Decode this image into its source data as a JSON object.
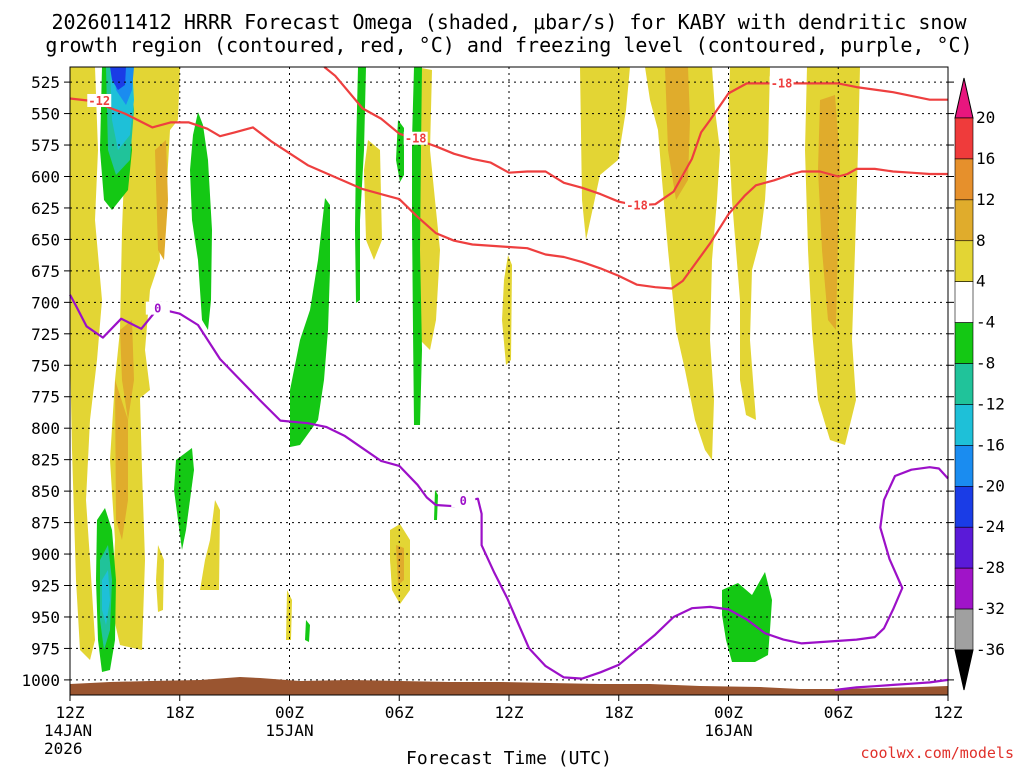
{
  "chart_data": {
    "type": "time-height cross section",
    "title_line1": "2026011412 HRRR Forecast Omega (shaded, μbar/s) for KABY with dendritic snow",
    "title_line2": "growth region (contoured, red, °C) and freezing level (contoured, purple, °C)",
    "xlabel": "Forecast Time (UTC)",
    "credit": "coolwx.com/models",
    "x_ticks": [
      {
        "hour": 0,
        "label": "12Z",
        "date": "14JAN",
        "year": "2026"
      },
      {
        "hour": 6,
        "label": "18Z"
      },
      {
        "hour": 12,
        "label": "00Z",
        "date": "15JAN"
      },
      {
        "hour": 18,
        "label": "06Z"
      },
      {
        "hour": 24,
        "label": "12Z"
      },
      {
        "hour": 30,
        "label": "18Z"
      },
      {
        "hour": 36,
        "label": "00Z",
        "date": "16JAN"
      },
      {
        "hour": 42,
        "label": "06Z"
      },
      {
        "hour": 48,
        "label": "12Z"
      }
    ],
    "x_range_hours": [
      0,
      48
    ],
    "y_pressure_levels_mb": [
      525,
      550,
      575,
      600,
      625,
      650,
      675,
      700,
      725,
      750,
      775,
      800,
      825,
      850,
      875,
      900,
      925,
      950,
      975,
      1000
    ],
    "y_range_mb": [
      513,
      1012
    ],
    "colorbar": {
      "labels": [
        "20",
        "16",
        "12",
        "8",
        "4",
        "-4",
        "-8",
        "-12",
        "-16",
        "-20",
        "-24",
        "-28",
        "-32",
        "-36"
      ],
      "bands": [
        {
          "range": [
            16,
            20
          ],
          "color": "#ef3b3b"
        },
        {
          "range": [
            12,
            16
          ],
          "color": "#e6902c"
        },
        {
          "range": [
            8,
            12
          ],
          "color": "#e0ac2c"
        },
        {
          "range": [
            4,
            8
          ],
          "color": "#e3d534"
        },
        {
          "range": [
            -4,
            4
          ],
          "color": "#ffffff"
        },
        {
          "range": [
            -8,
            -4
          ],
          "color": "#14c814"
        },
        {
          "range": [
            -12,
            -8
          ],
          "color": "#20c39a"
        },
        {
          "range": [
            -16,
            -12
          ],
          "color": "#1ec0d8"
        },
        {
          "range": [
            -20,
            -16
          ],
          "color": "#1a8cf0"
        },
        {
          "range": [
            -24,
            -20
          ],
          "color": "#1a3ce6"
        },
        {
          "range": [
            -28,
            -24
          ],
          "color": "#5a1ad8"
        },
        {
          "range": [
            -32,
            -28
          ],
          "color": "#a014c8"
        },
        {
          "range": [
            -36,
            -32
          ],
          "color": "#a0a0a0"
        }
      ],
      "top_arrow_color": "#e8167e",
      "bottom_arrow_color": "#000000"
    },
    "series": [
      {
        "name": "-12C contour",
        "color": "#ee3f3f",
        "label": "-12",
        "points": [
          [
            0,
            538
          ],
          [
            1.2,
            540
          ],
          [
            3,
            550
          ],
          [
            4.5,
            561
          ],
          [
            5.5,
            557
          ],
          [
            6.5,
            557
          ],
          [
            7.5,
            562
          ],
          [
            8.2,
            568
          ],
          [
            9,
            565
          ],
          [
            10,
            561
          ],
          [
            11,
            572
          ],
          [
            13,
            591
          ],
          [
            16,
            610
          ],
          [
            18,
            618
          ],
          [
            19,
            632
          ],
          [
            20,
            645
          ],
          [
            21,
            651
          ],
          [
            22,
            654
          ],
          [
            24,
            656
          ],
          [
            25,
            657
          ],
          [
            26,
            662
          ],
          [
            27,
            664
          ],
          [
            28,
            668
          ],
          [
            29,
            673
          ],
          [
            30,
            679
          ],
          [
            31,
            686
          ],
          [
            32,
            688
          ],
          [
            32.9,
            689
          ],
          [
            33.5,
            683
          ],
          [
            35,
            653
          ],
          [
            36,
            630
          ],
          [
            36.9,
            615
          ],
          [
            37.5,
            607
          ],
          [
            38.5,
            603
          ],
          [
            39.5,
            598
          ],
          [
            40,
            596
          ],
          [
            41,
            596
          ],
          [
            42,
            600
          ],
          [
            42.5,
            598
          ],
          [
            43,
            594
          ],
          [
            44,
            594
          ],
          [
            45,
            596
          ],
          [
            46,
            597
          ],
          [
            47,
            598
          ],
          [
            48,
            598
          ]
        ],
        "labels_at": [
          [
            1.6,
            540
          ]
        ]
      },
      {
        "name": "-18C contour",
        "color": "#ee3f3f",
        "label": "-18",
        "points": [
          [
            13.9,
            513
          ],
          [
            14.5,
            520
          ],
          [
            16,
            546
          ],
          [
            17,
            554
          ],
          [
            18,
            566
          ],
          [
            19,
            571
          ],
          [
            20,
            576
          ],
          [
            21,
            582
          ],
          [
            22,
            586
          ],
          [
            23,
            589
          ],
          [
            24,
            597
          ],
          [
            25,
            596
          ],
          [
            26,
            596
          ],
          [
            27,
            605
          ],
          [
            28,
            609
          ],
          [
            29,
            614
          ],
          [
            30,
            620
          ],
          [
            31,
            623
          ],
          [
            32,
            622
          ],
          [
            33,
            612
          ],
          [
            34,
            586
          ],
          [
            34.5,
            565
          ],
          [
            35,
            555
          ],
          [
            36,
            534
          ],
          [
            37,
            526
          ],
          [
            39,
            526
          ],
          [
            41,
            526
          ],
          [
            42,
            526
          ],
          [
            43,
            529
          ],
          [
            45,
            533
          ],
          [
            47,
            539
          ],
          [
            48,
            539
          ]
        ],
        "labels_at": [
          [
            18.9,
            570
          ],
          [
            31,
            623
          ],
          [
            38.9,
            526
          ]
        ]
      },
      {
        "name": "0C freezing level",
        "color": "#9c10c8",
        "label": "0",
        "points": [
          [
            0,
            694
          ],
          [
            0.3,
            702
          ],
          [
            0.9,
            719
          ],
          [
            1.8,
            728
          ],
          [
            2.8,
            713
          ],
          [
            3.9,
            721
          ],
          [
            4.8,
            705
          ],
          [
            6,
            709
          ],
          [
            7,
            718
          ],
          [
            8.2,
            745
          ],
          [
            9,
            757
          ],
          [
            10.4,
            778
          ],
          [
            11.5,
            794
          ],
          [
            13,
            796
          ],
          [
            14,
            799
          ],
          [
            15,
            806
          ],
          [
            16,
            816
          ],
          [
            17,
            826
          ],
          [
            18,
            830
          ],
          [
            19,
            845
          ],
          [
            19.5,
            855
          ],
          [
            20,
            861
          ],
          [
            21,
            862
          ],
          [
            21.5,
            858
          ],
          [
            22.3,
            856
          ],
          [
            22.5,
            868
          ],
          [
            22.5,
            893
          ],
          [
            23.2,
            915
          ],
          [
            23.9,
            935
          ],
          [
            24.5,
            955
          ],
          [
            25.1,
            975
          ],
          [
            26,
            989
          ],
          [
            27,
            998
          ],
          [
            28,
            999
          ],
          [
            29,
            994
          ],
          [
            30,
            988
          ],
          [
            31,
            976
          ],
          [
            32,
            964
          ],
          [
            33,
            950
          ],
          [
            34,
            943
          ],
          [
            35,
            942
          ],
          [
            36,
            944
          ],
          [
            37,
            952
          ],
          [
            38,
            963
          ],
          [
            39,
            968
          ],
          [
            40,
            971
          ],
          [
            41,
            970
          ],
          [
            42,
            969
          ],
          [
            43,
            968
          ],
          [
            44,
            966
          ],
          [
            44.5,
            959
          ],
          [
            45,
            944
          ],
          [
            45.5,
            927
          ],
          [
            44.8,
            904
          ],
          [
            44.3,
            879
          ],
          [
            44.5,
            857
          ],
          [
            45.1,
            838
          ],
          [
            46,
            833
          ],
          [
            47,
            831
          ],
          [
            47.5,
            832
          ],
          [
            48,
            840
          ]
        ],
        "labels_at": [
          [
            4.8,
            705
          ],
          [
            21.5,
            858
          ]
        ]
      },
      {
        "name": "0C freezing level (lower right)",
        "color": "#9c10c8",
        "points": [
          [
            41.8,
            1008
          ],
          [
            43,
            1006
          ],
          [
            44,
            1005
          ],
          [
            45,
            1004
          ],
          [
            46,
            1003
          ],
          [
            47,
            1002
          ],
          [
            48,
            1000
          ]
        ]
      }
    ],
    "annotations": {
      "contour_labels": [
        "-12",
        "-18",
        "0"
      ]
    }
  }
}
